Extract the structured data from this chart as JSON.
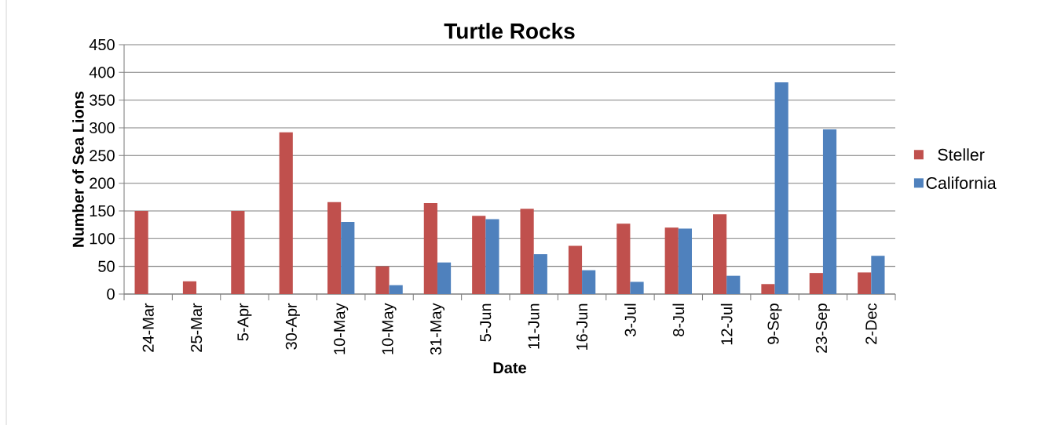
{
  "chart_data": {
    "type": "bar",
    "title": "Turtle Rocks",
    "xlabel": "Date",
    "ylabel": "Number of Sea Lions",
    "categories": [
      "24-Mar",
      "25-Mar",
      "5-Apr",
      "30-Apr",
      "10-May",
      "10-May",
      "31-May",
      "5-Jun",
      "11-Jun",
      "16-Jun",
      "3-Jul",
      "8-Jul",
      "12-Jul",
      "9-Sep",
      "23-Sep",
      "2-Dec"
    ],
    "series": [
      {
        "name": "Steller",
        "color": "#c0504d",
        "values": [
          150,
          23,
          150,
          292,
          166,
          50,
          164,
          141,
          154,
          87,
          127,
          120,
          144,
          18,
          38,
          39
        ]
      },
      {
        "name": "California",
        "color": "#4f81bd",
        "values": [
          0,
          0,
          0,
          0,
          130,
          16,
          57,
          135,
          72,
          43,
          22,
          118,
          33,
          382,
          297,
          69
        ]
      }
    ],
    "ylim": [
      0,
      450
    ],
    "yticks": [
      0,
      50,
      100,
      150,
      200,
      250,
      300,
      350,
      400,
      450
    ],
    "grid": "y",
    "legend": "right"
  }
}
